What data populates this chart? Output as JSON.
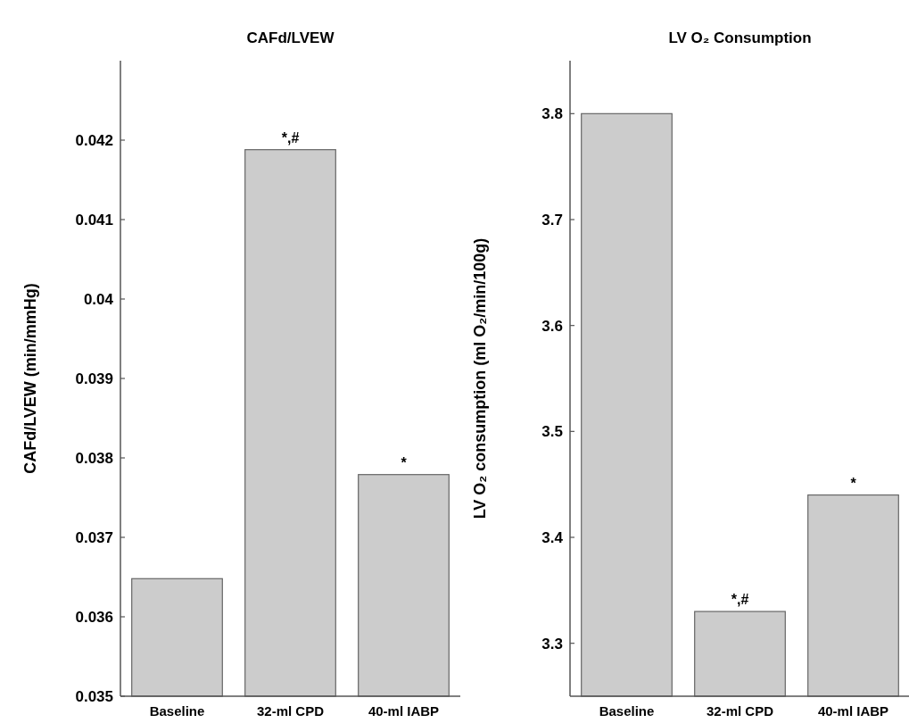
{
  "chart_data": [
    {
      "type": "bar",
      "title": "CAFd/LVEW",
      "ylabel": "CAFd/LVEW (min/mmHg)",
      "categories": [
        "Baseline",
        "32-ml CPD",
        "40-ml IABP"
      ],
      "values": [
        0.03648,
        0.04188,
        0.03779
      ],
      "color": "#cccccc",
      "ylim": [
        0.035,
        0.043
      ],
      "yticks": [
        0.035,
        0.036,
        0.037,
        0.038,
        0.039,
        0.04,
        0.041,
        0.042
      ],
      "grid": false,
      "annotations": [
        {
          "text": "*,#",
          "x": "32-ml CPD",
          "y": 0.04188
        },
        {
          "text": "*",
          "x": "40-ml IABP",
          "y": 0.03779
        }
      ]
    },
    {
      "type": "bar",
      "title": "LV O₂ Consumption",
      "ylabel": "LV O₂ consumption (ml O₂/min/100g)",
      "categories": [
        "Baseline",
        "32-ml CPD",
        "40-ml IABP"
      ],
      "values": [
        3.8,
        3.33,
        3.44
      ],
      "color": "#cccccc",
      "ylim": [
        3.25,
        3.85
      ],
      "yticks": [
        3.3,
        3.4,
        3.5,
        3.6,
        3.7,
        3.8
      ],
      "grid": false,
      "annotations": [
        {
          "text": "*,#",
          "x": "32-ml CPD",
          "y": 3.33
        },
        {
          "text": "*",
          "x": "40-ml IABP",
          "y": 3.44
        }
      ]
    }
  ]
}
